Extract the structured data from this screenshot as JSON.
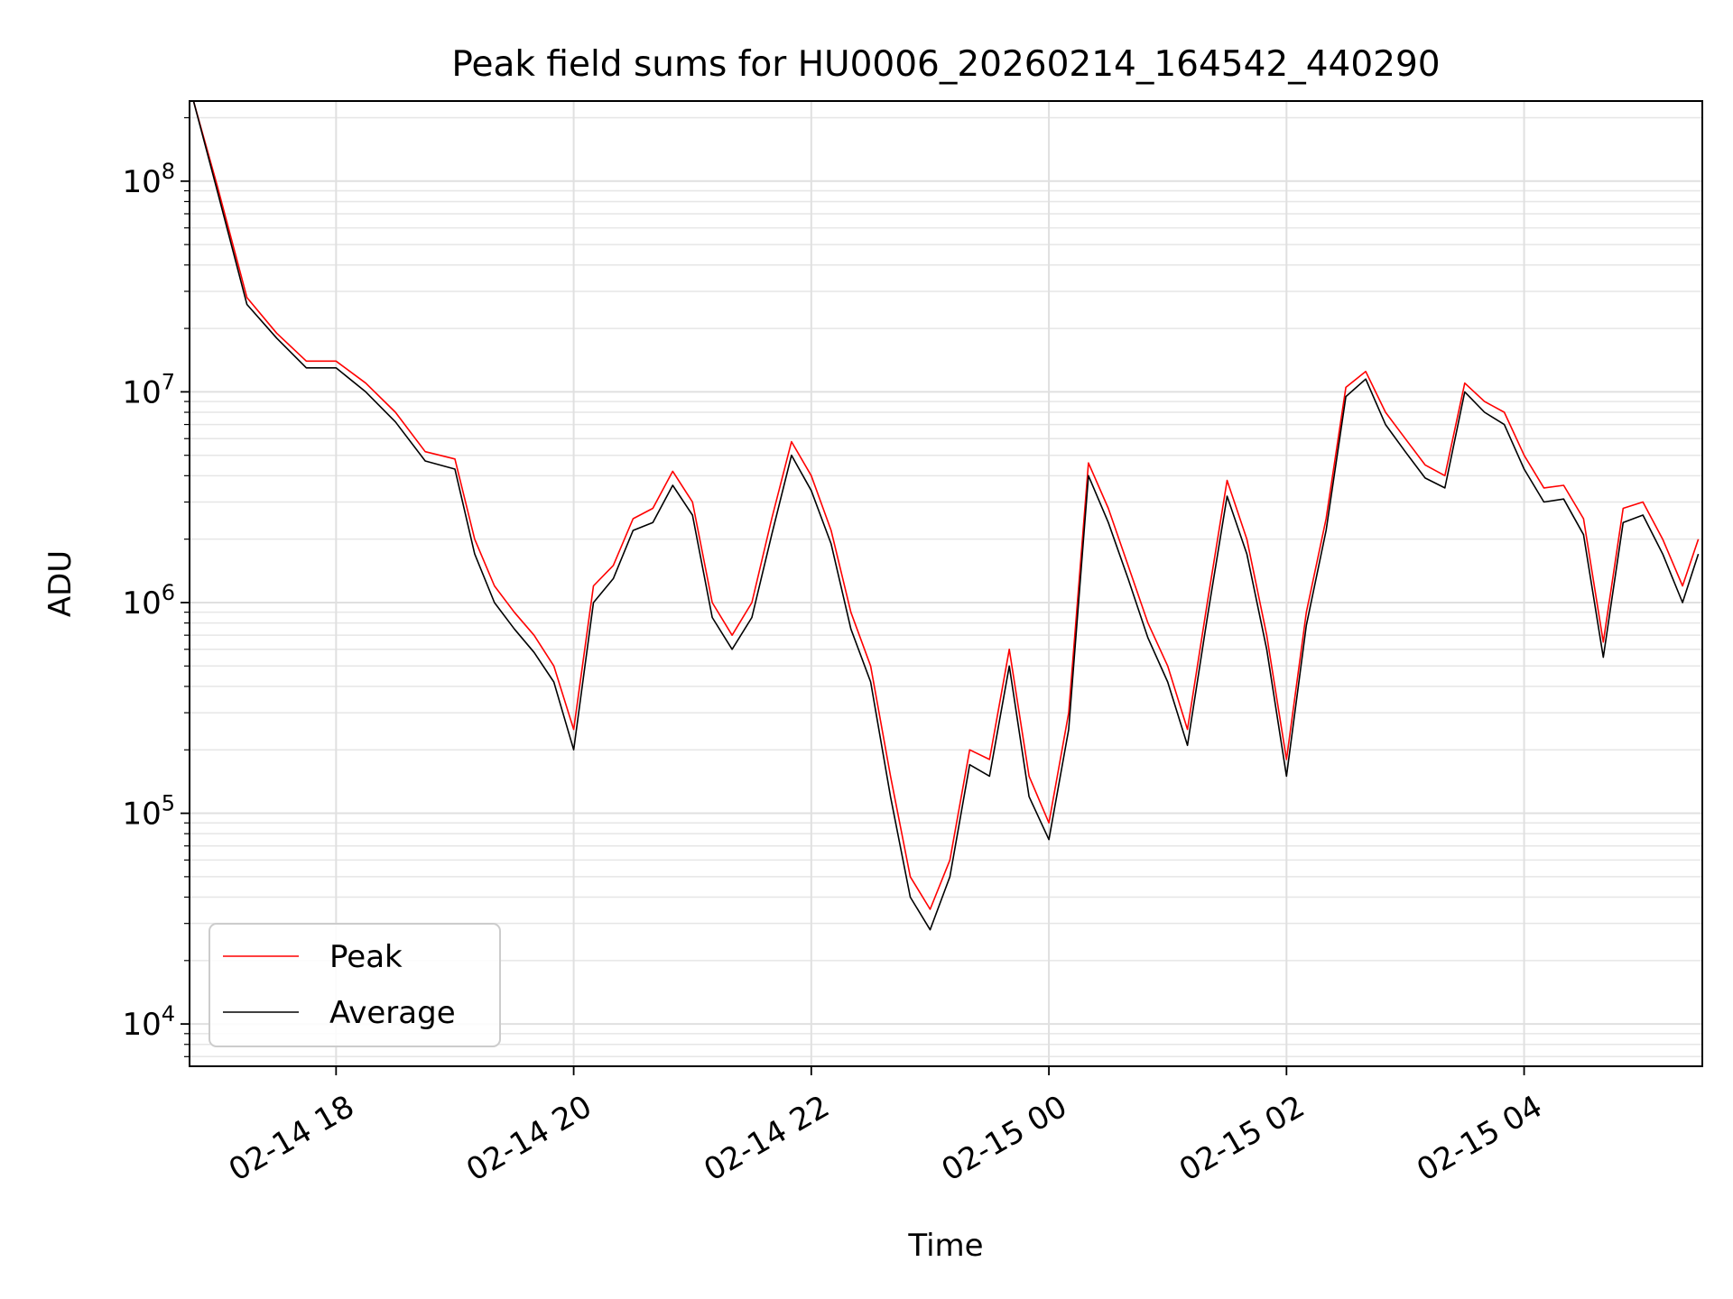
{
  "chart_data": {
    "type": "line",
    "title": "Peak field sums for HU0006_20260214_164542_440290",
    "xlabel": "Time",
    "ylabel": "ADU",
    "yscale": "log",
    "xlim": [
      "02-14 16:46",
      "02-15 05:30"
    ],
    "ylim": [
      6300,
      240000000
    ],
    "x_ticks": [
      "02-14 18",
      "02-14 20",
      "02-14 22",
      "02-15 00",
      "02-15 02",
      "02-15 04"
    ],
    "y_ticks": [
      {
        "value": 10000,
        "base": "10",
        "exp": "4"
      },
      {
        "value": 100000,
        "base": "10",
        "exp": "5"
      },
      {
        "value": 1000000,
        "base": "10",
        "exp": "6"
      },
      {
        "value": 10000000,
        "base": "10",
        "exp": "7"
      },
      {
        "value": 100000000,
        "base": "10",
        "exp": "8"
      }
    ],
    "grid": true,
    "legend": {
      "position": "lower-left"
    },
    "series": [
      {
        "name": "Peak",
        "color": "#ff0000",
        "x": [
          "02-14 16:48",
          "02-14 17:00",
          "02-14 17:15",
          "02-14 17:30",
          "02-14 17:45",
          "02-14 18:00",
          "02-14 18:15",
          "02-14 18:30",
          "02-14 18:45",
          "02-14 19:00",
          "02-14 19:10",
          "02-14 19:20",
          "02-14 19:30",
          "02-14 19:40",
          "02-14 19:50",
          "02-14 20:00",
          "02-14 20:10",
          "02-14 20:20",
          "02-14 20:30",
          "02-14 20:40",
          "02-14 20:50",
          "02-14 21:00",
          "02-14 21:10",
          "02-14 21:20",
          "02-14 21:30",
          "02-14 21:40",
          "02-14 21:50",
          "02-14 22:00",
          "02-14 22:10",
          "02-14 22:20",
          "02-14 22:30",
          "02-14 22:40",
          "02-14 22:50",
          "02-14 23:00",
          "02-14 23:10",
          "02-14 23:20",
          "02-14 23:30",
          "02-14 23:40",
          "02-14 23:50",
          "02-15 00:00",
          "02-15 00:10",
          "02-15 00:20",
          "02-15 00:30",
          "02-15 00:40",
          "02-15 00:50",
          "02-15 01:00",
          "02-15 01:10",
          "02-15 01:20",
          "02-15 01:30",
          "02-15 01:40",
          "02-15 01:50",
          "02-15 02:00",
          "02-15 02:10",
          "02-15 02:20",
          "02-15 02:30",
          "02-15 02:40",
          "02-15 02:50",
          "02-15 03:00",
          "02-15 03:10",
          "02-15 03:20",
          "02-15 03:30",
          "02-15 03:40",
          "02-15 03:50",
          "02-15 04:00",
          "02-15 04:10",
          "02-15 04:20",
          "02-15 04:30",
          "02-15 04:40",
          "02-15 04:50",
          "02-15 05:00",
          "02-15 05:10",
          "02-15 05:20",
          "02-15 05:28"
        ],
        "y": [
          240000000,
          95000000,
          28000000,
          19000000,
          14000000,
          14000000,
          11000000,
          8000000,
          5200000,
          4800000,
          2000000,
          1200000,
          900000,
          700000,
          500000,
          250000,
          1200000,
          1500000,
          2500000,
          2800000,
          4200000,
          3000000,
          1000000,
          700000,
          1000000,
          2500000,
          5800000,
          4000000,
          2200000,
          900000,
          500000,
          150000,
          50000,
          35000,
          60000,
          200000,
          180000,
          600000,
          150000,
          90000,
          300000,
          4600000,
          2800000,
          1500000,
          800000,
          500000,
          250000,
          1000000,
          3800000,
          2000000,
          700000,
          180000,
          900000,
          2500000,
          10500000,
          12500000,
          8000000,
          6000000,
          4500000,
          4000000,
          11000000,
          9000000,
          8000000,
          5000000,
          3500000,
          3600000,
          2500000,
          650000,
          2800000,
          3000000,
          2000000,
          1200000,
          2000000
        ]
      },
      {
        "name": "Average",
        "color": "#000000",
        "x": [
          "02-14 16:48",
          "02-14 17:00",
          "02-14 17:15",
          "02-14 17:30",
          "02-14 17:45",
          "02-14 18:00",
          "02-14 18:15",
          "02-14 18:30",
          "02-14 18:45",
          "02-14 19:00",
          "02-14 19:10",
          "02-14 19:20",
          "02-14 19:30",
          "02-14 19:40",
          "02-14 19:50",
          "02-14 20:00",
          "02-14 20:10",
          "02-14 20:20",
          "02-14 20:30",
          "02-14 20:40",
          "02-14 20:50",
          "02-14 21:00",
          "02-14 21:10",
          "02-14 21:20",
          "02-14 21:30",
          "02-14 21:40",
          "02-14 21:50",
          "02-14 22:00",
          "02-14 22:10",
          "02-14 22:20",
          "02-14 22:30",
          "02-14 22:40",
          "02-14 22:50",
          "02-14 23:00",
          "02-14 23:10",
          "02-14 23:20",
          "02-14 23:30",
          "02-14 23:40",
          "02-14 23:50",
          "02-15 00:00",
          "02-15 00:10",
          "02-15 00:20",
          "02-15 00:30",
          "02-15 00:40",
          "02-15 00:50",
          "02-15 01:00",
          "02-15 01:10",
          "02-15 01:20",
          "02-15 01:30",
          "02-15 01:40",
          "02-15 01:50",
          "02-15 02:00",
          "02-15 02:10",
          "02-15 02:20",
          "02-15 02:30",
          "02-15 02:40",
          "02-15 02:50",
          "02-15 03:00",
          "02-15 03:10",
          "02-15 03:20",
          "02-15 03:30",
          "02-15 03:40",
          "02-15 03:50",
          "02-15 04:00",
          "02-15 04:10",
          "02-15 04:20",
          "02-15 04:30",
          "02-15 04:40",
          "02-15 04:50",
          "02-15 05:00",
          "02-15 05:10",
          "02-15 05:20",
          "02-15 05:28"
        ],
        "y": [
          240000000,
          90000000,
          26000000,
          18000000,
          13000000,
          13000000,
          10000000,
          7200000,
          4700000,
          4300000,
          1700000,
          1000000,
          750000,
          580000,
          420000,
          200000,
          1000000,
          1300000,
          2200000,
          2400000,
          3600000,
          2600000,
          850000,
          600000,
          850000,
          2100000,
          5000000,
          3400000,
          1900000,
          750000,
          420000,
          120000,
          40000,
          28000,
          50000,
          170000,
          150000,
          500000,
          120000,
          75000,
          250000,
          4000000,
          2400000,
          1300000,
          680000,
          420000,
          210000,
          850000,
          3200000,
          1700000,
          600000,
          150000,
          780000,
          2200000,
          9500000,
          11500000,
          7000000,
          5200000,
          3900000,
          3500000,
          10000000,
          8000000,
          7000000,
          4300000,
          3000000,
          3100000,
          2100000,
          550000,
          2400000,
          2600000,
          1700000,
          1000000,
          1700000
        ]
      }
    ]
  }
}
